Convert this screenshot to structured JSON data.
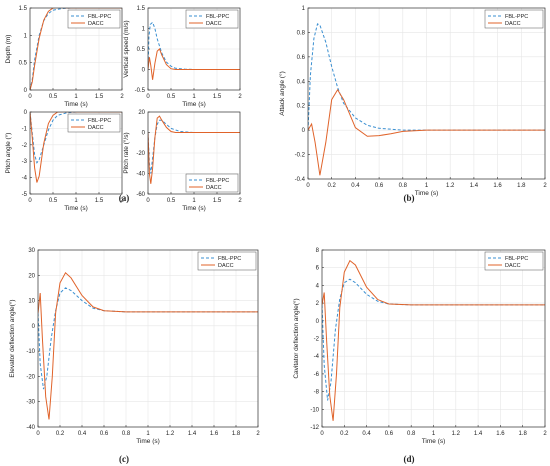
{
  "colors": {
    "fbl": "#3a8fd1",
    "dacc": "#e0632a",
    "grid": "#e6e6e6",
    "axis": "#333333"
  },
  "captions": [
    "(a)",
    "(b)",
    "(c)",
    "(d)"
  ],
  "chart_data": [
    {
      "type": "line",
      "panel": "a1",
      "title": "",
      "xlabel": "Time (s)",
      "ylabel": "Depth (m)",
      "xlim": [
        0,
        2
      ],
      "ylim": [
        0,
        1.5
      ],
      "xticks": [
        "0",
        "0.5",
        "1",
        "1.5",
        "2"
      ],
      "xtick_values": [
        0,
        0.5,
        1,
        1.5,
        2
      ],
      "yticks": [
        "0",
        "0.5",
        "1",
        "1.5"
      ],
      "ytick_values": [
        0,
        0.5,
        1,
        1.5
      ],
      "grid": true,
      "legend": "top-right",
      "series": [
        {
          "name": "FBL-PPC",
          "style": "dashed",
          "x": [
            0,
            0.05,
            0.1,
            0.2,
            0.3,
            0.4,
            0.5,
            0.7,
            0.9,
            1.2,
            2.0
          ],
          "y": [
            0,
            0.2,
            0.55,
            1.0,
            1.27,
            1.4,
            1.46,
            1.49,
            1.5,
            1.5,
            1.5
          ]
        },
        {
          "name": "DACC",
          "style": "solid",
          "x": [
            0,
            0.05,
            0.1,
            0.2,
            0.3,
            0.4,
            0.5,
            0.6,
            0.8,
            1.0,
            2.0
          ],
          "y": [
            0,
            0.15,
            0.45,
            0.95,
            1.28,
            1.44,
            1.5,
            1.51,
            1.5,
            1.5,
            1.5
          ]
        }
      ]
    },
    {
      "type": "line",
      "panel": "a2",
      "title": "",
      "xlabel": "Time (s)",
      "ylabel": "Vertical speed (m/s)",
      "xlim": [
        0,
        2
      ],
      "ylim": [
        -0.5,
        1.5
      ],
      "xticks": [
        "0",
        "0.5",
        "1",
        "1.5",
        "2"
      ],
      "xtick_values": [
        0,
        0.5,
        1,
        1.5,
        2
      ],
      "yticks": [
        "-0.5",
        "0",
        "0.5",
        "1",
        "1.5"
      ],
      "ytick_values": [
        -0.5,
        0,
        0.5,
        1,
        1.5
      ],
      "grid": true,
      "legend": "top-right",
      "series": [
        {
          "name": "FBL-PPC",
          "style": "dashed",
          "x": [
            0,
            0.02,
            0.05,
            0.1,
            0.15,
            0.2,
            0.3,
            0.4,
            0.5,
            0.6,
            0.8,
            1.0,
            2.0
          ],
          "y": [
            0,
            0.8,
            1.1,
            1.15,
            1.0,
            0.75,
            0.4,
            0.18,
            0.08,
            0.03,
            0.01,
            0,
            0
          ]
        },
        {
          "name": "DACC",
          "style": "solid",
          "x": [
            0,
            0.03,
            0.06,
            0.1,
            0.15,
            0.2,
            0.25,
            0.3,
            0.4,
            0.5,
            0.6,
            0.8,
            2.0
          ],
          "y": [
            0,
            0.3,
            0.1,
            -0.25,
            0.15,
            0.45,
            0.5,
            0.35,
            0.12,
            0.02,
            0,
            0,
            0
          ]
        }
      ]
    },
    {
      "type": "line",
      "panel": "a3",
      "title": "",
      "xlabel": "Time (s)",
      "ylabel": "Pitch angle (°)",
      "xlim": [
        0,
        2
      ],
      "ylim": [
        -5,
        0
      ],
      "xticks": [
        "0",
        "0.5",
        "1",
        "1.5",
        "2"
      ],
      "xtick_values": [
        0,
        0.5,
        1,
        1.5,
        2
      ],
      "yticks": [
        "-5",
        "-4",
        "-3",
        "-2",
        "-1",
        "0"
      ],
      "ytick_values": [
        -5,
        -4,
        -3,
        -2,
        -1,
        0
      ],
      "grid": true,
      "legend": "top-right",
      "series": [
        {
          "name": "FBL-PPC",
          "style": "dashed",
          "x": [
            0,
            0.05,
            0.1,
            0.15,
            0.2,
            0.3,
            0.4,
            0.5,
            0.6,
            0.8,
            1.0,
            2.0
          ],
          "y": [
            0,
            -1.3,
            -2.6,
            -3.1,
            -2.9,
            -2.0,
            -1.1,
            -0.5,
            -0.2,
            -0.05,
            0,
            0
          ]
        },
        {
          "name": "DACC",
          "style": "solid",
          "x": [
            0,
            0.05,
            0.1,
            0.15,
            0.2,
            0.25,
            0.3,
            0.4,
            0.5,
            0.6,
            0.8,
            1.0,
            2.0
          ],
          "y": [
            0,
            -1.6,
            -3.4,
            -4.3,
            -3.9,
            -2.9,
            -1.9,
            -0.7,
            -0.2,
            0,
            0.02,
            0,
            0
          ]
        }
      ]
    },
    {
      "type": "line",
      "panel": "a4",
      "title": "",
      "xlabel": "Time (s)",
      "ylabel": "Pitch rate (°/s)",
      "xlim": [
        0,
        2
      ],
      "ylim": [
        -60,
        20
      ],
      "xticks": [
        "0",
        "0.5",
        "1",
        "1.5",
        "2"
      ],
      "xtick_values": [
        0,
        0.5,
        1,
        1.5,
        2
      ],
      "yticks": [
        "-60",
        "-40",
        "-20",
        "0",
        "20"
      ],
      "ytick_values": [
        -60,
        -40,
        -20,
        0,
        20
      ],
      "grid": true,
      "legend": "bottom-right",
      "series": [
        {
          "name": "FBL-PPC",
          "style": "dashed",
          "x": [
            0,
            0.03,
            0.06,
            0.1,
            0.15,
            0.2,
            0.25,
            0.3,
            0.4,
            0.5,
            0.7,
            1.0,
            2.0
          ],
          "y": [
            0,
            -30,
            -40,
            -25,
            -5,
            8,
            12,
            12,
            8,
            4,
            1,
            0,
            0
          ]
        },
        {
          "name": "DACC",
          "style": "solid",
          "x": [
            0,
            0.03,
            0.06,
            0.1,
            0.15,
            0.2,
            0.25,
            0.3,
            0.4,
            0.5,
            0.6,
            0.8,
            2.0
          ],
          "y": [
            0,
            -40,
            -50,
            -35,
            -5,
            14,
            16,
            12,
            5,
            1,
            0,
            0,
            0
          ]
        }
      ]
    },
    {
      "type": "line",
      "panel": "b",
      "title": "",
      "xlabel": "Time (s)",
      "ylabel": "Attack angle (°)",
      "xlim": [
        0,
        2
      ],
      "ylim": [
        -0.4,
        1
      ],
      "xticks": [
        "0",
        "0.2",
        "0.4",
        "0.6",
        "0.8",
        "1",
        "1.2",
        "1.4",
        "1.6",
        "1.8",
        "2"
      ],
      "xtick_values": [
        0,
        0.2,
        0.4,
        0.6,
        0.8,
        1,
        1.2,
        1.4,
        1.6,
        1.8,
        2
      ],
      "yticks": [
        "-0.4",
        "-0.2",
        "0",
        "0.2",
        "0.4",
        "0.6",
        "0.8",
        "1"
      ],
      "ytick_values": [
        -0.4,
        -0.2,
        0,
        0.2,
        0.4,
        0.6,
        0.8,
        1
      ],
      "grid": true,
      "legend": "top-right",
      "series": [
        {
          "name": "FBL-PPC",
          "style": "dashed",
          "x": [
            0,
            0.02,
            0.05,
            0.08,
            0.1,
            0.15,
            0.2,
            0.25,
            0.3,
            0.4,
            0.5,
            0.6,
            0.8,
            1.0,
            1.2,
            2.0
          ],
          "y": [
            0,
            0.45,
            0.75,
            0.87,
            0.86,
            0.72,
            0.52,
            0.35,
            0.22,
            0.1,
            0.04,
            0.015,
            0,
            0,
            0,
            0
          ]
        },
        {
          "name": "DACC",
          "style": "solid",
          "x": [
            0,
            0.03,
            0.06,
            0.1,
            0.15,
            0.2,
            0.25,
            0.3,
            0.4,
            0.5,
            0.6,
            0.7,
            0.8,
            1.0,
            1.2,
            2.0
          ],
          "y": [
            0,
            0.05,
            -0.1,
            -0.37,
            -0.1,
            0.25,
            0.33,
            0.25,
            0.02,
            -0.05,
            -0.045,
            -0.03,
            -0.01,
            0,
            0,
            0
          ]
        }
      ]
    },
    {
      "type": "line",
      "panel": "c",
      "title": "",
      "xlabel": "Time (s)",
      "ylabel": "Elevator  deflection angle(°)",
      "xlim": [
        0,
        2
      ],
      "ylim": [
        -40,
        30
      ],
      "xticks": [
        "0",
        "0.2",
        "0.4",
        "0.6",
        "0.8",
        "1",
        "1.2",
        "1.4",
        "1.6",
        "1.8",
        "2"
      ],
      "xtick_values": [
        0,
        0.2,
        0.4,
        0.6,
        0.8,
        1,
        1.2,
        1.4,
        1.6,
        1.8,
        2
      ],
      "yticks": [
        "-40",
        "-30",
        "-20",
        "-10",
        "0",
        "10",
        "20",
        "30"
      ],
      "ytick_values": [
        -40,
        -30,
        -20,
        -10,
        0,
        10,
        20,
        30
      ],
      "grid": true,
      "legend": "top-right",
      "series": [
        {
          "name": "FBL-PPC",
          "style": "dashed",
          "x": [
            0,
            0.02,
            0.05,
            0.08,
            0.12,
            0.16,
            0.2,
            0.25,
            0.3,
            0.4,
            0.5,
            0.6,
            0.8,
            1.0,
            2.0
          ],
          "y": [
            5,
            -15,
            -25,
            -20,
            -5,
            6,
            13,
            15,
            14,
            10,
            7,
            6,
            5.5,
            5.5,
            5.5
          ]
        },
        {
          "name": "DACC",
          "style": "solid",
          "x": [
            0,
            0.02,
            0.04,
            0.07,
            0.1,
            0.13,
            0.16,
            0.2,
            0.25,
            0.3,
            0.4,
            0.5,
            0.6,
            0.8,
            1.0,
            2.0
          ],
          "y": [
            5,
            13,
            -5,
            -28,
            -37,
            -20,
            5,
            17,
            21,
            19,
            12,
            7.5,
            6,
            5.5,
            5.5,
            5.5
          ]
        }
      ]
    },
    {
      "type": "line",
      "panel": "d",
      "title": "",
      "xlabel": "Time (s)",
      "ylabel": "Cavitator deflection angle(°)",
      "xlim": [
        0,
        2
      ],
      "ylim": [
        -12,
        8
      ],
      "xticks": [
        "0",
        "0.2",
        "0.4",
        "0.6",
        "0.8",
        "1",
        "1.2",
        "1.4",
        "1.6",
        "1.8",
        "2"
      ],
      "xtick_values": [
        0,
        0.2,
        0.4,
        0.6,
        0.8,
        1,
        1.2,
        1.4,
        1.6,
        1.8,
        2
      ],
      "yticks": [
        "-12",
        "-10",
        "-8",
        "-6",
        "-4",
        "-2",
        "0",
        "2",
        "4",
        "6",
        "8"
      ],
      "ytick_values": [
        -12,
        -10,
        -8,
        -6,
        -4,
        -2,
        0,
        2,
        4,
        6,
        8
      ],
      "grid": true,
      "legend": "top-right",
      "series": [
        {
          "name": "FBL-PPC",
          "style": "dashed",
          "x": [
            0,
            0.02,
            0.05,
            0.08,
            0.12,
            0.16,
            0.2,
            0.25,
            0.3,
            0.4,
            0.5,
            0.6,
            0.8,
            1.0,
            2.0
          ],
          "y": [
            1.8,
            -5,
            -9,
            -7,
            -1,
            2.5,
            4.3,
            4.7,
            4.3,
            3.0,
            2.2,
            1.9,
            1.8,
            1.8,
            1.8
          ]
        },
        {
          "name": "DACC",
          "style": "solid",
          "x": [
            0,
            0.02,
            0.04,
            0.07,
            0.1,
            0.13,
            0.16,
            0.2,
            0.25,
            0.3,
            0.4,
            0.5,
            0.6,
            0.8,
            1.0,
            2.0
          ],
          "y": [
            1.8,
            3.2,
            -2,
            -8.5,
            -11.3,
            -6,
            1.5,
            5.5,
            6.8,
            6.3,
            3.8,
            2.4,
            1.9,
            1.8,
            1.8,
            1.8
          ]
        }
      ]
    }
  ]
}
